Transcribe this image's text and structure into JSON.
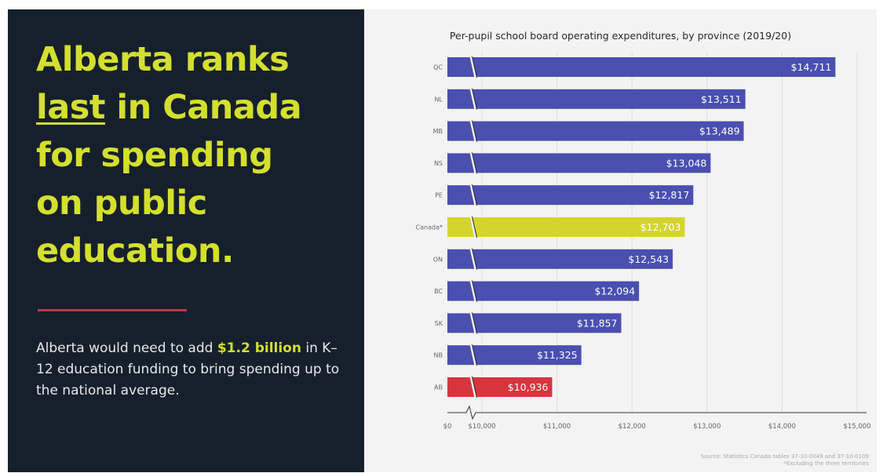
{
  "left_panel": {
    "headline_lines": {
      "l1": "Alberta ranks",
      "l2_underlined": "last",
      "l2_rest": " in Canada",
      "l3": "for spending",
      "l4": "on public",
      "l5": "education."
    },
    "body_pre": "Alberta would need to add ",
    "body_highlight": "$1.2 billion",
    "body_post": " in K–12 education funding to bring spending up to the national average.",
    "colors": {
      "background": "#16202d",
      "accent": "#d4df2e",
      "divider": "#b83a47"
    }
  },
  "chart_data": {
    "type": "bar",
    "orientation": "horizontal",
    "title": "Per-pupil school board operating expenditures, by province (2019/20)",
    "categories": [
      "QC",
      "NL",
      "MB",
      "NS",
      "PE",
      "Canada*",
      "ON",
      "BC",
      "SK",
      "NB",
      "AB"
    ],
    "values": [
      14711,
      13511,
      13489,
      13048,
      12817,
      12703,
      12543,
      12094,
      11857,
      11325,
      10936
    ],
    "value_labels": [
      "$14,711",
      "$13,511",
      "$13,489",
      "$13,048",
      "$12,817",
      "$12,703",
      "$12,543",
      "$12,094",
      "$11,857",
      "$11,325",
      "$10,936"
    ],
    "bar_colors": [
      "#4a4fb0",
      "#4a4fb0",
      "#4a4fb0",
      "#4a4fb0",
      "#4a4fb0",
      "#d4d52c",
      "#4a4fb0",
      "#4a4fb0",
      "#4a4fb0",
      "#4a4fb0",
      "#d8343e"
    ],
    "x_ticks": [
      0,
      10000,
      11000,
      12000,
      13000,
      14000,
      15000
    ],
    "x_tick_labels": [
      "$0",
      "$10,000",
      "$11,000",
      "$12,000",
      "$13,000",
      "$14,000",
      "$15,000"
    ],
    "axis_break": "between $0 and $10,000",
    "xlim": [
      10000,
      15000
    ],
    "grid": true,
    "legend": "none",
    "source": "Source: Statistics Canada tables 37-10-0049 and 37-10-0109",
    "footnote": "*Excluding the three territories"
  }
}
